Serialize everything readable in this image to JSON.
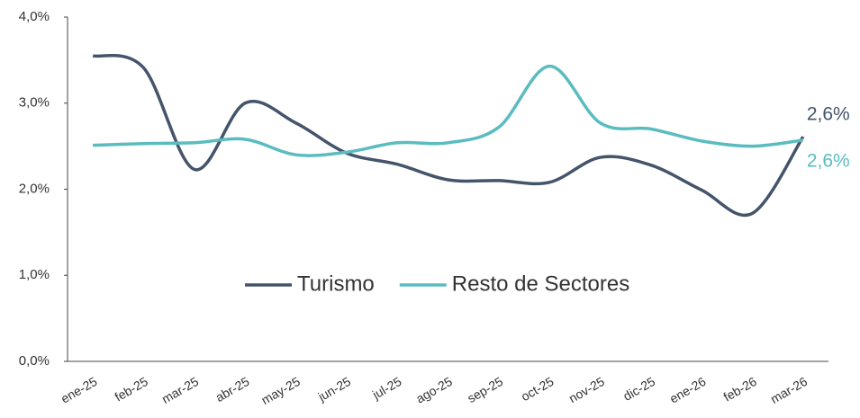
{
  "chart_data": {
    "type": "line",
    "categories": [
      "ene-25",
      "feb-25",
      "mar-25",
      "abr-25",
      "may-25",
      "jun-25",
      "jul-25",
      "ago-25",
      "sep-25",
      "oct-25",
      "nov-25",
      "dic-25",
      "ene-26",
      "feb-26",
      "mar-26"
    ],
    "series": [
      {
        "name": "Turismo",
        "color": "#44546a",
        "values": [
          3.55,
          3.41,
          2.23,
          3.0,
          2.77,
          2.42,
          2.29,
          2.11,
          2.1,
          2.08,
          2.37,
          2.28,
          1.99,
          1.72,
          2.61
        ],
        "value_labels": [
          null,
          null,
          null,
          null,
          null,
          null,
          null,
          null,
          null,
          null,
          null,
          null,
          null,
          null,
          "2,6%"
        ]
      },
      {
        "name": "Resto de Sectores",
        "color": "#5bbcc0",
        "values": [
          2.51,
          2.53,
          2.54,
          2.58,
          2.4,
          2.43,
          2.54,
          2.54,
          2.72,
          3.43,
          2.77,
          2.7,
          2.56,
          2.5,
          2.57
        ],
        "value_labels": [
          null,
          null,
          null,
          null,
          null,
          null,
          null,
          null,
          null,
          null,
          null,
          null,
          null,
          null,
          "2,6%"
        ]
      }
    ],
    "ylim": [
      0,
      4
    ],
    "yticks": [
      {
        "value": 0,
        "label": "0,0%"
      },
      {
        "value": 1,
        "label": "1,0%"
      },
      {
        "value": 2,
        "label": "2,0%"
      },
      {
        "value": 3,
        "label": "3,0%"
      },
      {
        "value": 4,
        "label": "4,0%"
      }
    ],
    "grid": false,
    "legend": "center"
  }
}
